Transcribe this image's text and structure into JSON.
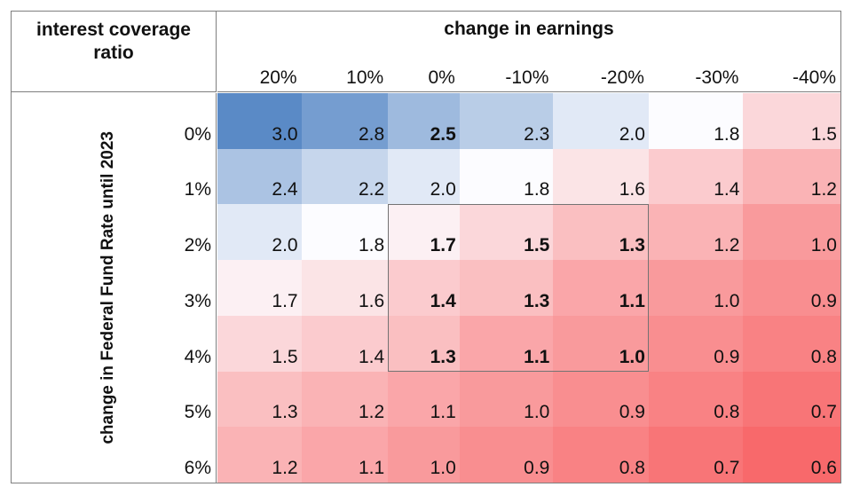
{
  "header": {
    "corner_title": "interest coverage ratio",
    "top_title": "change in earnings"
  },
  "left_axis_title": "change in Federal Fund Rate until 2023",
  "chart_data": {
    "type": "heatmap",
    "x_axis_title": "change in earnings",
    "y_axis_title": "change in Federal Fund Rate until 2023",
    "cell_metric": "interest coverage ratio",
    "columns": [
      "20%",
      "10%",
      "0%",
      "-10%",
      "-20%",
      "-30%",
      "-40%"
    ],
    "rows": [
      "0%",
      "1%",
      "2%",
      "3%",
      "4%",
      "5%",
      "6%"
    ],
    "values": [
      [
        3.0,
        2.8,
        2.5,
        2.3,
        2.0,
        1.8,
        1.5
      ],
      [
        2.4,
        2.2,
        2.0,
        1.8,
        1.6,
        1.4,
        1.2
      ],
      [
        2.0,
        1.8,
        1.7,
        1.5,
        1.3,
        1.2,
        1.0
      ],
      [
        1.7,
        1.6,
        1.4,
        1.3,
        1.1,
        1.0,
        0.9
      ],
      [
        1.5,
        1.4,
        1.3,
        1.1,
        1.0,
        0.9,
        0.8
      ],
      [
        1.3,
        1.2,
        1.1,
        1.0,
        0.9,
        0.8,
        0.7
      ],
      [
        1.2,
        1.1,
        1.0,
        0.9,
        0.8,
        0.7,
        0.6
      ]
    ],
    "decimals": 1,
    "bold_cells": [
      [
        0,
        2
      ],
      [
        2,
        2
      ],
      [
        2,
        3
      ],
      [
        2,
        4
      ],
      [
        3,
        2
      ],
      [
        3,
        3
      ],
      [
        3,
        4
      ],
      [
        4,
        2
      ],
      [
        4,
        3
      ],
      [
        4,
        4
      ]
    ],
    "highlight_box": {
      "row_start": 2,
      "row_end": 4,
      "col_start": 2,
      "col_end": 4
    },
    "colorscale": {
      "min": {
        "value": 0.6,
        "color": "#F8696B"
      },
      "mid": {
        "value": 1.8,
        "color": "#FCFCFF"
      },
      "max": {
        "value": 3.0,
        "color": "#5A8AC6"
      }
    },
    "legend_position": "none",
    "grid": false
  },
  "colors": {
    "frame_border": "#7f7f7f",
    "highlight_border": "#737373",
    "text": "#111111",
    "background": "#ffffff"
  }
}
